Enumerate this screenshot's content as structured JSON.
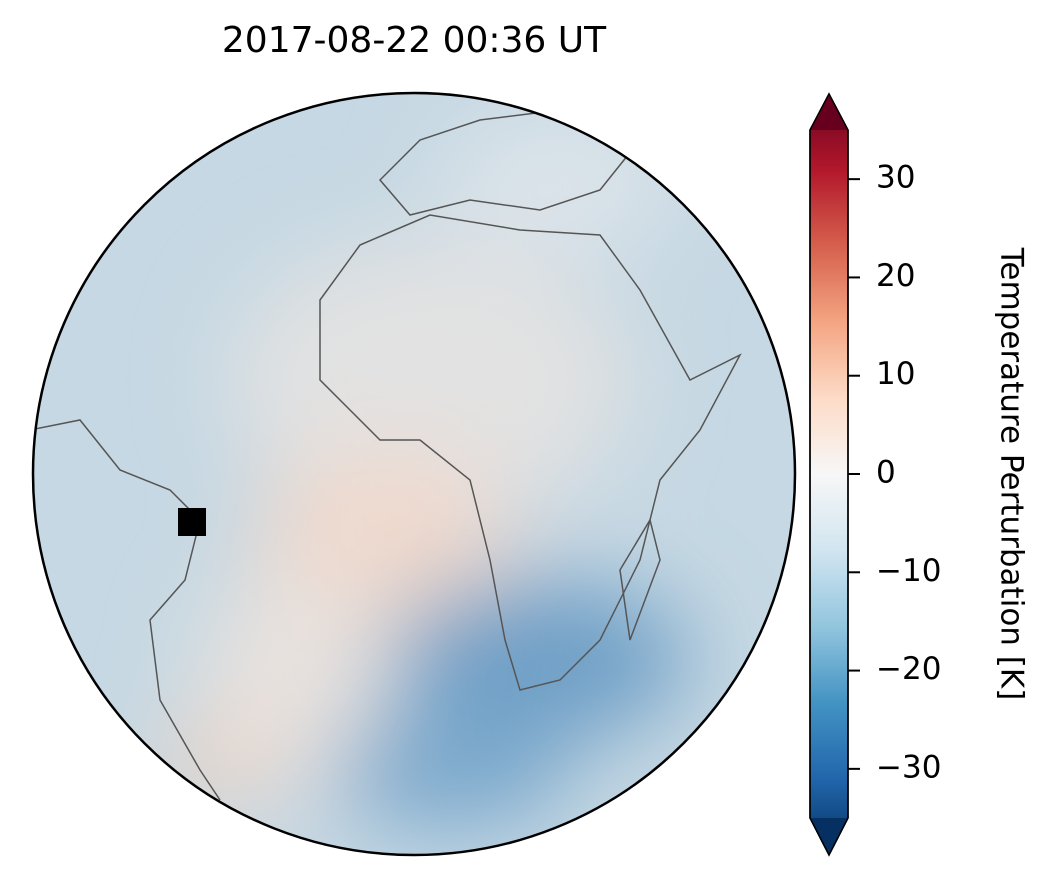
{
  "chart_data": {
    "type": "map",
    "title": "2017-08-22  00:36 UT",
    "colorbar_label": "Temperature Perturbation [K]",
    "clim": [
      -35,
      35
    ],
    "cticks": [
      {
        "value": -30,
        "label": "−30"
      },
      {
        "value": -20,
        "label": "−20"
      },
      {
        "value": -10,
        "label": "−10"
      },
      0,
      10,
      20,
      30
    ]
  }
}
